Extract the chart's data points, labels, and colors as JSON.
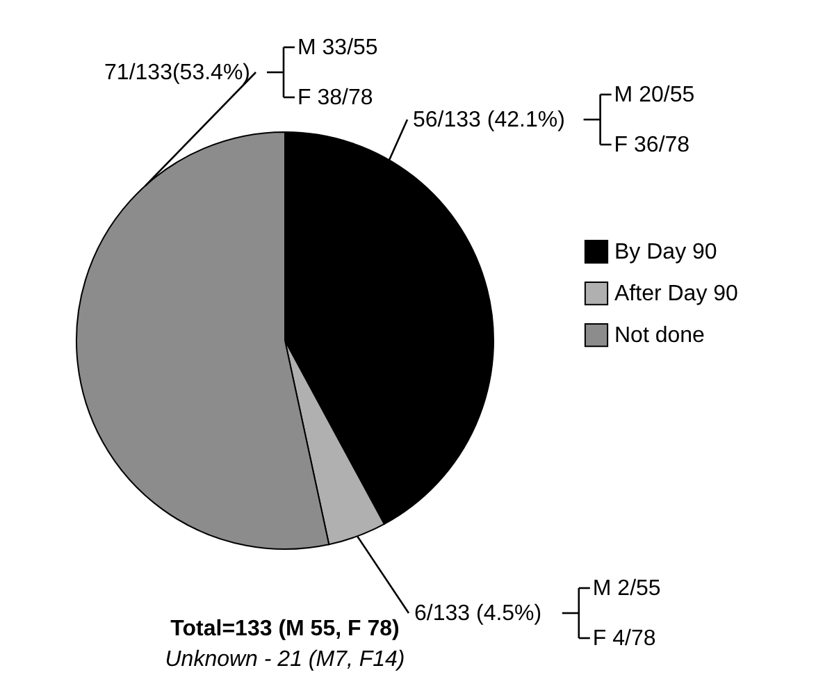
{
  "chart_data": {
    "type": "pie",
    "categories": [
      "By Day 90",
      "After Day 90",
      "Not done"
    ],
    "values": [
      56,
      6,
      71
    ],
    "colors": [
      "#000000",
      "#b0b0b0",
      "#8c8c8c"
    ],
    "value_labels": [
      "56/133 (42.1%)",
      "6/133 (4.5%)",
      "71/133(53.4%)"
    ],
    "annotations": [
      "M 20/55",
      "F 36/78",
      "M 2/55",
      "F 4/78",
      "M 33/55",
      "F 38/78",
      "Total=133 (M 55, F 78)",
      "Unknown - 21 (M7, F14)"
    ],
    "legend": "right"
  }
}
